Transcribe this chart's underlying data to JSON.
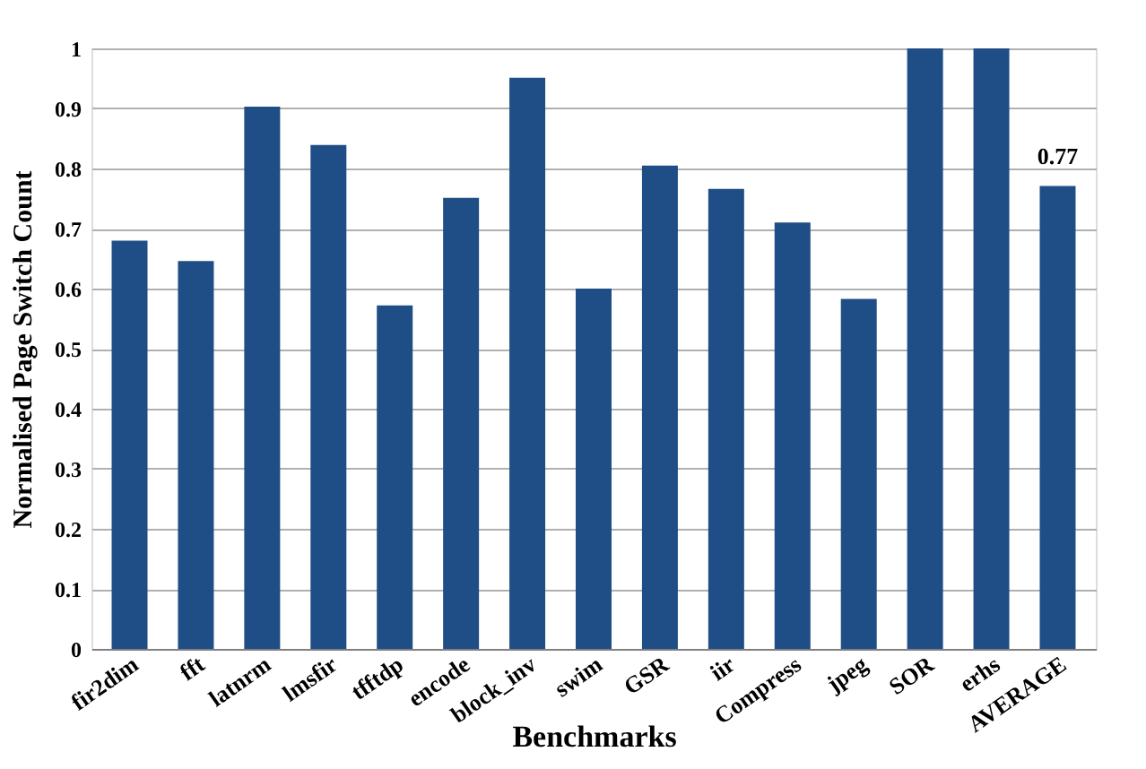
{
  "chart_data": {
    "type": "bar",
    "xlabel": "Benchmarks",
    "ylabel": "Normalised  Page Switch Count",
    "categories": [
      "fir2dim",
      "fft",
      "latnrm",
      "lmsfir",
      "tfftdp",
      "encode",
      "block_inv",
      "swim",
      "GSR",
      "iir",
      "Compress",
      "jpeg",
      "SOR",
      "erhs",
      "AVERAGE"
    ],
    "values": [
      0.68,
      0.646,
      0.903,
      0.839,
      0.572,
      0.751,
      0.951,
      0.6,
      0.805,
      0.766,
      0.71,
      0.583,
      1,
      1,
      0.771
    ],
    "value_labels": [
      null,
      null,
      null,
      null,
      null,
      null,
      null,
      null,
      null,
      null,
      null,
      null,
      null,
      null,
      "0.77"
    ],
    "color": "#1f4e87",
    "ylim": [
      0,
      1
    ],
    "yticks": [
      0,
      0.1,
      0.2,
      0.3,
      0.4,
      0.5,
      0.6,
      0.7,
      0.8,
      0.9,
      1
    ],
    "grid": "y"
  }
}
